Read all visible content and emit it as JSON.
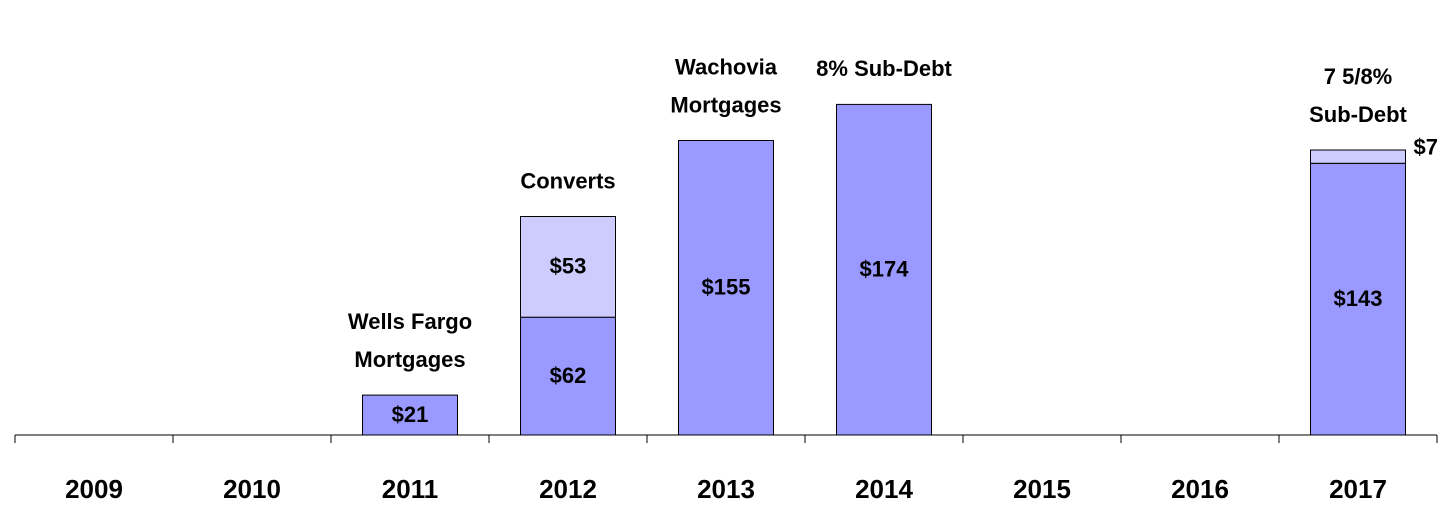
{
  "chart_data": {
    "type": "bar",
    "stacked": true,
    "categories": [
      "2009",
      "2010",
      "2011",
      "2012",
      "2013",
      "2014",
      "2015",
      "2016",
      "2017"
    ],
    "series": [
      {
        "color": "#9999ff",
        "values": [
          null,
          null,
          21,
          62,
          155,
          174,
          null,
          null,
          143
        ],
        "value_labels": [
          null,
          null,
          "$21",
          "$62",
          "$155",
          "$174",
          null,
          null,
          "$143"
        ]
      },
      {
        "color": "#ccccff",
        "values": [
          null,
          null,
          null,
          53,
          null,
          null,
          null,
          null,
          7
        ],
        "value_labels": [
          null,
          null,
          null,
          "$53",
          null,
          null,
          null,
          null,
          "$7"
        ]
      }
    ],
    "annotations": [
      null,
      null,
      [
        "Wells Fargo",
        "Mortgages"
      ],
      [
        "Converts"
      ],
      [
        "Wachovia",
        "Mortgages"
      ],
      [
        "8% Sub-Debt"
      ],
      null,
      null,
      [
        "7 5/8%",
        "Sub-Debt"
      ]
    ]
  }
}
